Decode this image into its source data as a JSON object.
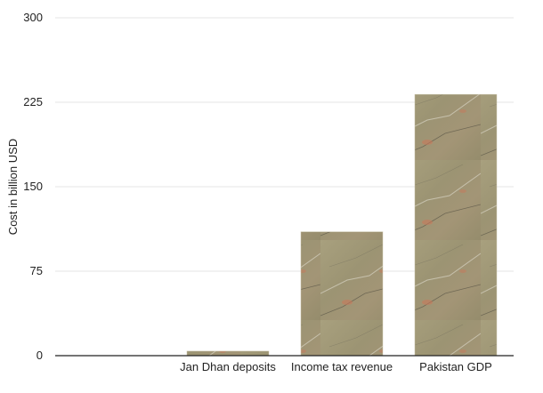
{
  "chart_data": {
    "type": "bar",
    "title": "",
    "xlabel": "",
    "ylabel": "Cost in billion USD",
    "categories": [
      "",
      "Jan Dhan deposits",
      "Income tax revenue",
      "Pakistan GDP"
    ],
    "values": [
      0,
      4,
      110,
      232
    ],
    "ylim": [
      0,
      300
    ],
    "yticks": [
      "0",
      "75",
      "150",
      "225",
      "300"
    ],
    "grid": true,
    "legend": "none",
    "bar_fill": "stone texture",
    "colors": {
      "bar_base": "#a39b7a",
      "grid": "#e6e6e6",
      "axis": "#222222"
    }
  }
}
